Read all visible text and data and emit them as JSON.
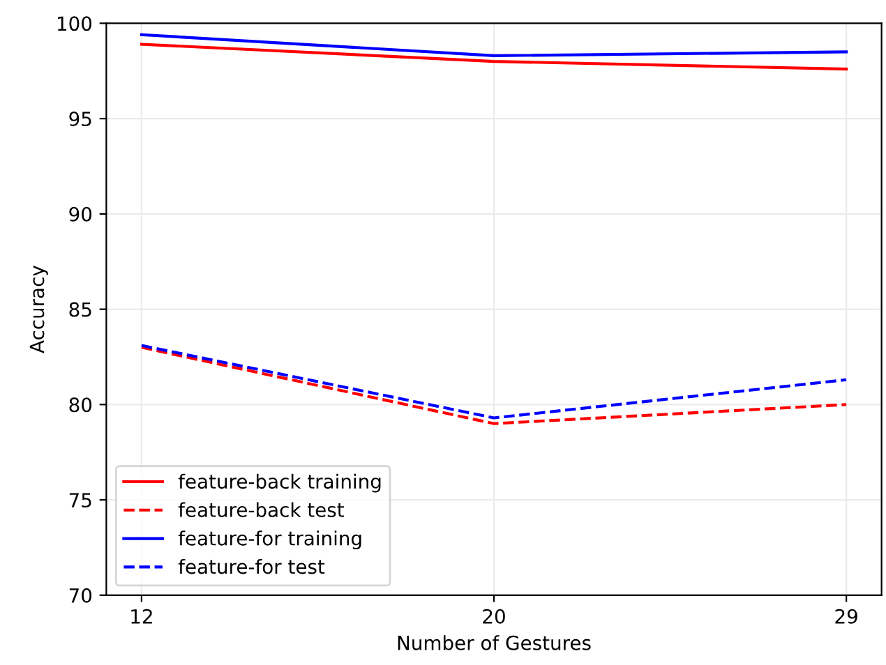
{
  "chart_data": {
    "type": "line",
    "xlabel": "Number of Gestures",
    "ylabel": "Accuracy",
    "categories": [
      "12",
      "20",
      "29"
    ],
    "ylim": [
      70,
      100
    ],
    "yticks": [
      70,
      75,
      80,
      85,
      90,
      95,
      100
    ],
    "grid": true,
    "legend": "bottom left",
    "series": [
      {
        "name": "feature-back training",
        "color": "#ff0000",
        "line_style": "solid",
        "values": [
          98.9,
          98.0,
          97.6
        ]
      },
      {
        "name": "feature-back test",
        "color": "#ff0000",
        "line_style": "dashed",
        "values": [
          83.0,
          79.0,
          80.0
        ]
      },
      {
        "name": "feature-for training",
        "color": "#0000ff",
        "line_style": "solid",
        "values": [
          99.4,
          98.3,
          98.5
        ]
      },
      {
        "name": "feature-for test",
        "color": "#0000ff",
        "line_style": "dashed",
        "values": [
          83.1,
          79.3,
          81.3
        ]
      }
    ]
  }
}
